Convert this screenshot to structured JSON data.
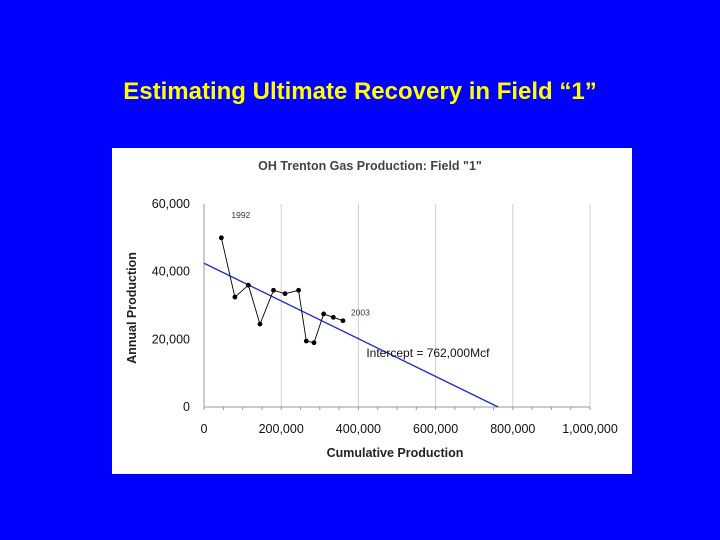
{
  "slide": {
    "title": "Estimating Ultimate Recovery in Field “1”"
  },
  "colors": {
    "background": "#0000ff",
    "title": "#ffff00",
    "trend_line": "#1f2fd0",
    "series": "#000000"
  },
  "chart_data": {
    "type": "line",
    "title": "OH Trenton Gas Production: Field \"1\"",
    "xlabel": "Cumulative Production",
    "ylabel": "Annual Production",
    "xlim": [
      0,
      1000000
    ],
    "ylim": [
      0,
      60000
    ],
    "x_ticks": [
      0,
      200000,
      400000,
      600000,
      800000,
      1000000
    ],
    "x_tick_labels": [
      "0",
      "200,000",
      "400,000",
      "600,000",
      "800,000",
      "1,000,000"
    ],
    "y_ticks": [
      0,
      20000,
      40000,
      60000
    ],
    "y_tick_labels": [
      "0",
      "20,000",
      "40,000",
      "60,000"
    ],
    "grid": "vertical",
    "legend": "none",
    "series": [
      {
        "values": [
          {
            "x": 45000,
            "y": 50000
          },
          {
            "x": 80000,
            "y": 32500
          },
          {
            "x": 115000,
            "y": 36000
          },
          {
            "x": 145000,
            "y": 24500
          },
          {
            "x": 180000,
            "y": 34500
          },
          {
            "x": 210000,
            "y": 33500
          },
          {
            "x": 245000,
            "y": 34500
          },
          {
            "x": 265000,
            "y": 19500
          },
          {
            "x": 285000,
            "y": 19000
          },
          {
            "x": 310000,
            "y": 27500
          },
          {
            "x": 335000,
            "y": 26500
          },
          {
            "x": 360000,
            "y": 25500
          }
        ]
      }
    ],
    "trend_line": {
      "start": {
        "x": 0,
        "y": 42500
      },
      "end": {
        "x": 762000,
        "y": 0
      }
    },
    "annotations": [
      {
        "text": "1992",
        "x": 45000,
        "y": 50000
      },
      {
        "text": "2003",
        "x": 360000,
        "y": 25500
      },
      {
        "text": "Intercept = 762,000Mcf",
        "x": 580000,
        "y": 16000
      }
    ]
  }
}
